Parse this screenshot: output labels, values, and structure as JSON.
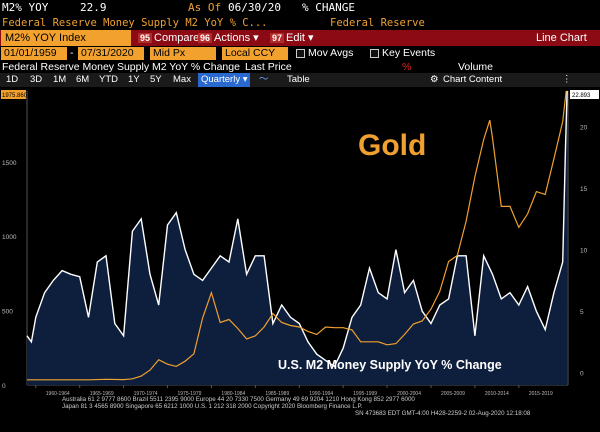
{
  "header": {
    "ticker": "M2% YOY",
    "last": "22.9",
    "as_of_label": "As Of",
    "as_of_date": "06/30/20",
    "unit": "% CHANGE",
    "description": "Federal Reserve Money Supply M2 YoY % C...",
    "source": "Federal Reserve"
  },
  "toolbar": {
    "security": "M2% YOY Index",
    "compare_num": "95",
    "compare": "Compare",
    "actions_num": "96",
    "actions": "Actions ▾",
    "edit_num": "97",
    "edit": "Edit ▾",
    "view_title": "Line Chart"
  },
  "params": {
    "start_date": "01/01/1959",
    "end_date": "07/31/2020",
    "price_field": "Mid Px",
    "currency": "Local CCY",
    "mov_avgs": "Mov Avgs",
    "key_events": "Key Events"
  },
  "legend": {
    "series1": "Federal Reserve Money Supply M2 YoY % Change",
    "last_price": "Last Price",
    "volume": "Volume"
  },
  "nav": {
    "ranges": [
      "1D",
      "3D",
      "1M",
      "6M",
      "YTD",
      "1Y",
      "5Y",
      "Max"
    ],
    "frequency": "Quarterly ▾",
    "table": "Table",
    "chart_content": "Chart Content"
  },
  "colors": {
    "m2_area": "#0e1f3d",
    "m2_line": "#ffffff",
    "gold_line": "#f0a030",
    "toolbar_bg": "#8b0a14",
    "accent": "#f2a12f"
  },
  "chart_data": {
    "type": "line",
    "x_tick_labels": [
      "1960-1964",
      "1965-1969",
      "1970-1974",
      "1975-1979",
      "1980-1984",
      "1985-1989",
      "1990-1994",
      "1995-1999",
      "2000-2004",
      "2005-2009",
      "2010-2014",
      "2015-2019"
    ],
    "left_axis": {
      "ticks": [
        "1975.860",
        "1500",
        "1000",
        "500",
        "0"
      ],
      "ylim": [
        0,
        1975.86
      ]
    },
    "right_axis": {
      "ticks": [
        "22.893",
        "20",
        "15",
        "10",
        "5",
        "0"
      ],
      "ylim": [
        -1,
        22.893
      ]
    },
    "annotations": {
      "gold": "Gold",
      "m2": "U.S. M2 Money Supply YoY % Change"
    },
    "series": [
      {
        "name": "Gold",
        "axis": "left",
        "points": [
          [
            1959,
            35
          ],
          [
            1966,
            35
          ],
          [
            1968,
            38
          ],
          [
            1970,
            36
          ],
          [
            1971,
            42
          ],
          [
            1972,
            60
          ],
          [
            1973,
            100
          ],
          [
            1974,
            170
          ],
          [
            1975,
            140
          ],
          [
            1976,
            125
          ],
          [
            1977,
            160
          ],
          [
            1978,
            210
          ],
          [
            1979,
            450
          ],
          [
            1980,
            620
          ],
          [
            1981,
            420
          ],
          [
            1982,
            440
          ],
          [
            1983,
            380
          ],
          [
            1984,
            310
          ],
          [
            1985,
            330
          ],
          [
            1986,
            390
          ],
          [
            1987,
            480
          ],
          [
            1988,
            420
          ],
          [
            1989,
            400
          ],
          [
            1990,
            390
          ],
          [
            1991,
            360
          ],
          [
            1992,
            340
          ],
          [
            1993,
            390
          ],
          [
            1994,
            385
          ],
          [
            1995,
            385
          ],
          [
            1996,
            370
          ],
          [
            1997,
            290
          ],
          [
            1998,
            290
          ],
          [
            1999,
            290
          ],
          [
            2000,
            270
          ],
          [
            2001,
            278
          ],
          [
            2002,
            340
          ],
          [
            2003,
            410
          ],
          [
            2004,
            430
          ],
          [
            2005,
            510
          ],
          [
            2006,
            630
          ],
          [
            2007,
            830
          ],
          [
            2008,
            870
          ],
          [
            2009,
            1100
          ],
          [
            2010,
            1400
          ],
          [
            2011,
            1650
          ],
          [
            2011.7,
            1780
          ],
          [
            2012,
            1660
          ],
          [
            2013,
            1200
          ],
          [
            2014,
            1200
          ],
          [
            2015,
            1060
          ],
          [
            2016,
            1150
          ],
          [
            2017,
            1300
          ],
          [
            2018,
            1280
          ],
          [
            2019,
            1520
          ],
          [
            2020,
            1770
          ],
          [
            2020.4,
            1975
          ]
        ]
      },
      {
        "name": "U.S. M2 Money Supply YoY % Change",
        "axis": "right",
        "points": [
          [
            1959,
            3
          ],
          [
            1959.5,
            2.5
          ],
          [
            1960,
            4.5
          ],
          [
            1961,
            6.5
          ],
          [
            1962,
            7.5
          ],
          [
            1963,
            8.3
          ],
          [
            1964,
            8
          ],
          [
            1965,
            7.8
          ],
          [
            1966,
            4.5
          ],
          [
            1967,
            9
          ],
          [
            1968,
            9.5
          ],
          [
            1969,
            4
          ],
          [
            1970,
            3
          ],
          [
            1971,
            11.5
          ],
          [
            1972,
            12.5
          ],
          [
            1973,
            8
          ],
          [
            1974,
            5.5
          ],
          [
            1975,
            12
          ],
          [
            1976,
            13
          ],
          [
            1977,
            10
          ],
          [
            1978,
            8
          ],
          [
            1979,
            7.5
          ],
          [
            1980,
            8.5
          ],
          [
            1981,
            9.5
          ],
          [
            1982,
            9
          ],
          [
            1983,
            12.5
          ],
          [
            1984,
            8
          ],
          [
            1985,
            9.5
          ],
          [
            1986,
            9.5
          ],
          [
            1987,
            4
          ],
          [
            1988,
            5.5
          ],
          [
            1989,
            4.5
          ],
          [
            1990,
            4
          ],
          [
            1991,
            2.5
          ],
          [
            1992,
            1.5
          ],
          [
            1993,
            1
          ],
          [
            1994,
            0.5
          ],
          [
            1995,
            2
          ],
          [
            1996,
            4.5
          ],
          [
            1997,
            5.5
          ],
          [
            1998,
            8.5
          ],
          [
            1999,
            6.5
          ],
          [
            2000,
            6
          ],
          [
            2001,
            10
          ],
          [
            2002,
            6.5
          ],
          [
            2003,
            7.5
          ],
          [
            2004,
            5
          ],
          [
            2005,
            4
          ],
          [
            2006,
            5.5
          ],
          [
            2007,
            6
          ],
          [
            2008,
            9.5
          ],
          [
            2009,
            9.5
          ],
          [
            2010,
            3
          ],
          [
            2011,
            9.5
          ],
          [
            2012,
            8
          ],
          [
            2013,
            6
          ],
          [
            2014,
            6.5
          ],
          [
            2015,
            5.5
          ],
          [
            2016,
            7
          ],
          [
            2017,
            5
          ],
          [
            2018,
            3.5
          ],
          [
            2019,
            6.5
          ],
          [
            2020,
            9
          ],
          [
            2020.3,
            18
          ],
          [
            2020.5,
            22.9
          ]
        ]
      }
    ],
    "footer": [
      "Australia 61 2 9777 8600  Brazil 5511 2395 9000  Europe 44 20 7330 7500  Germany 49 69 9204 1210  Hong Kong 852 2977 6000",
      "Japan 81 3 4565 8900     Singapore 65 6212 1000     U.S. 1 212 318 2000           Copyright 2020 Bloomberg Finance L.P.",
      "SN 473683 EDT  GMT-4:00 H428-2259-2 02-Aug-2020 12:18:08"
    ]
  }
}
